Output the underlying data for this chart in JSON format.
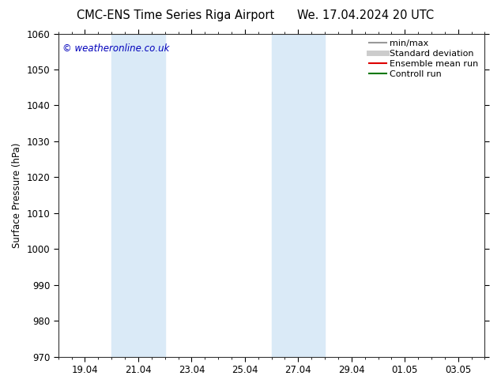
{
  "title_left": "CMC-ENS Time Series Riga Airport",
  "title_right": "We. 17.04.2024 20 UTC",
  "ylabel": "Surface Pressure (hPa)",
  "ylim": [
    970,
    1060
  ],
  "yticks": [
    970,
    980,
    990,
    1000,
    1010,
    1020,
    1030,
    1040,
    1050,
    1060
  ],
  "xtick_labels": [
    "19.04",
    "21.04",
    "23.04",
    "25.04",
    "27.04",
    "29.04",
    "01.05",
    "03.05"
  ],
  "xtick_positions": [
    2,
    6,
    10,
    14,
    18,
    22,
    26,
    30
  ],
  "xlim": [
    0,
    32
  ],
  "shaded_bands": [
    {
      "x_start": 4,
      "x_end": 8,
      "color": "#daeaf7"
    },
    {
      "x_start": 16,
      "x_end": 20,
      "color": "#daeaf7"
    }
  ],
  "watermark_text": "© weatheronline.co.uk",
  "watermark_color": "#0000bb",
  "legend_items": [
    {
      "label": "min/max",
      "color": "#999999",
      "lw": 1.5,
      "style": "solid"
    },
    {
      "label": "Standard deviation",
      "color": "#cccccc",
      "lw": 5,
      "style": "solid"
    },
    {
      "label": "Ensemble mean run",
      "color": "#dd0000",
      "lw": 1.5,
      "style": "solid"
    },
    {
      "label": "Controll run",
      "color": "#007700",
      "lw": 1.5,
      "style": "solid"
    }
  ],
  "bg_color": "#ffffff",
  "title_fontsize": 10.5,
  "tick_fontsize": 8.5,
  "ylabel_fontsize": 8.5,
  "legend_fontsize": 8
}
